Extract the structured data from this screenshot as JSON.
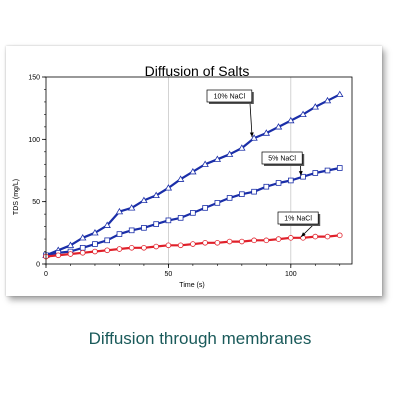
{
  "caption": "Diffusion through membranes",
  "chart_data": {
    "type": "line",
    "title": "Diffusion of Salts",
    "xlabel": "Time (s)",
    "ylabel": "TDS (mg/L)",
    "xlim": [
      0,
      125
    ],
    "ylim": [
      0,
      150
    ],
    "xticks": [
      0,
      50,
      100
    ],
    "yticks": [
      0,
      50,
      100,
      150
    ],
    "grid": "vertical only",
    "x": [
      0,
      5,
      10,
      15,
      20,
      25,
      30,
      35,
      40,
      45,
      50,
      55,
      60,
      65,
      70,
      75,
      80,
      85,
      90,
      95,
      100,
      105,
      110,
      115,
      120
    ],
    "series": [
      {
        "name": "10% NaCl",
        "color": "#1a2ea8",
        "marker": "triangle",
        "values": [
          7,
          11,
          15,
          21,
          25,
          31,
          42,
          45,
          51,
          55,
          61,
          68,
          74,
          80,
          84,
          88,
          93,
          101,
          105,
          110,
          115,
          120,
          126,
          131,
          136
        ]
      },
      {
        "name": "5% NaCl",
        "color": "#1a2ea8",
        "marker": "square",
        "values": [
          7,
          9,
          10,
          13,
          16,
          19,
          24,
          27,
          29,
          32,
          35,
          37,
          41,
          45,
          49,
          53,
          56,
          58,
          62,
          65,
          67,
          70,
          73,
          75,
          77
        ]
      },
      {
        "name": "1% NaCl",
        "color": "#e0202a",
        "marker": "circle",
        "values": [
          6,
          7,
          8,
          9,
          10,
          11,
          12,
          13,
          13,
          14,
          15,
          15,
          16,
          17,
          17,
          18,
          18,
          19,
          19,
          20,
          21,
          21,
          22,
          22,
          23
        ]
      }
    ],
    "annotations": [
      "10% NaCl",
      "5% NaCl",
      "1% NaCl"
    ]
  }
}
